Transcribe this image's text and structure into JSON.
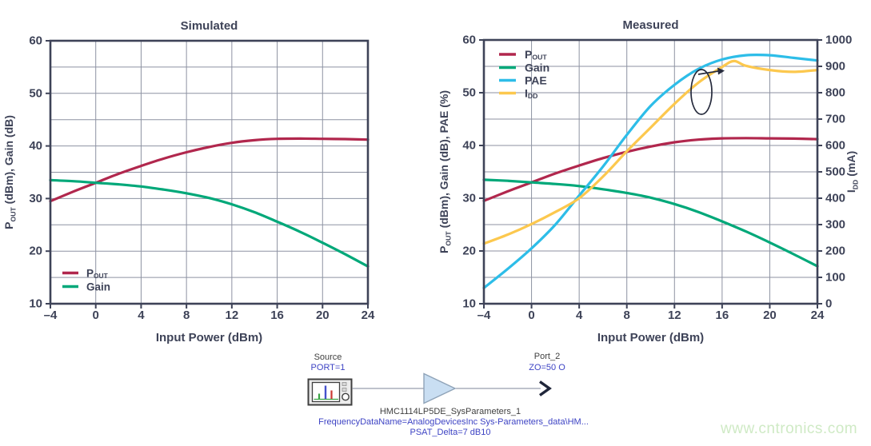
{
  "watermark": "www.cntronics.com",
  "colors": {
    "pout": "#b1274d",
    "gain": "#00a879",
    "pae": "#2dbde8",
    "idd": "#fcc84e",
    "axis": "#3e4358",
    "grid": "#8d92a2",
    "amp_fill": "#c9def2",
    "amp_stroke": "#8fa3b8",
    "wire": "#7d8699",
    "schematic_blue": "#3d43c4",
    "schematic_dark": "#3f3f3f",
    "watermark_green": "#cfeac5"
  },
  "chart_data": [
    {
      "type": "line",
      "title": "Simulated",
      "xlabel": "Input Power (dBm)",
      "ylabel": "P_OUT (dBm), Gain (dB)",
      "ylabel_parts": [
        {
          "t": "P"
        },
        {
          "t": "OUT",
          "sub": true
        },
        {
          "t": " (dBm), Gain (dB)"
        }
      ],
      "xlim": [
        -4,
        24
      ],
      "ylim": [
        10,
        60
      ],
      "xticks": [
        -4,
        0,
        4,
        8,
        12,
        16,
        20,
        24
      ],
      "xtick_labels": [
        "–4",
        "0",
        "4",
        "8",
        "12",
        "16",
        "20",
        "24"
      ],
      "yticks": [
        10,
        20,
        30,
        40,
        50,
        60
      ],
      "xgrid_step": 4,
      "ygrid_step": 5,
      "grid": true,
      "legend_position": "bottom-left",
      "series": [
        {
          "name": "POUT",
          "label_parts": [
            {
              "t": "P"
            },
            {
              "t": "OUT",
              "sub": true
            }
          ],
          "color": "#b1274d",
          "x": [
            -4,
            -2,
            0,
            2,
            4,
            6,
            8,
            10,
            12,
            14,
            16,
            18,
            20,
            22,
            24
          ],
          "y": [
            29.5,
            31.3,
            33,
            34.7,
            36.2,
            37.6,
            38.8,
            39.8,
            40.6,
            41.1,
            41.35,
            41.4,
            41.35,
            41.3,
            41.2
          ]
        },
        {
          "name": "Gain",
          "label_parts": [
            {
              "t": "Gain"
            }
          ],
          "color": "#00a879",
          "x": [
            -4,
            -2,
            0,
            2,
            4,
            6,
            8,
            10,
            12,
            14,
            16,
            18,
            20,
            22,
            24
          ],
          "y": [
            33.5,
            33.3,
            33,
            32.7,
            32.3,
            31.7,
            31,
            30.1,
            28.9,
            27.4,
            25.6,
            23.7,
            21.6,
            19.4,
            17.1
          ]
        }
      ]
    },
    {
      "type": "line",
      "title": "Measured",
      "xlabel": "Input Power (dBm)",
      "ylabel": "P_OUT (dBm), Gain (dB), PAE (%)",
      "ylabel_parts": [
        {
          "t": "P"
        },
        {
          "t": "OUT",
          "sub": true
        },
        {
          "t": " (dBm), Gain (dB), PAE (%)"
        }
      ],
      "y2label": "I_DD (mA)",
      "y2label_parts": [
        {
          "t": "I"
        },
        {
          "t": "DD",
          "sub": true
        },
        {
          "t": " (mA)"
        }
      ],
      "xlim": [
        -4,
        24
      ],
      "ylim": [
        10,
        60
      ],
      "y2lim": [
        0,
        1000
      ],
      "xticks": [
        -4,
        0,
        4,
        8,
        12,
        16,
        20,
        24
      ],
      "xtick_labels": [
        "–4",
        "0",
        "4",
        "8",
        "12",
        "16",
        "20",
        "24"
      ],
      "yticks": [
        10,
        20,
        30,
        40,
        50,
        60
      ],
      "y2ticks": [
        0,
        100,
        200,
        300,
        400,
        500,
        600,
        700,
        800,
        900,
        1000
      ],
      "xgrid_step": 4,
      "ygrid_step": 5,
      "grid": true,
      "legend_position": "top-left",
      "annotation": {
        "type": "ellipse-arrow",
        "meaning": "IDD curve reads right axis"
      },
      "series": [
        {
          "name": "POUT",
          "label_parts": [
            {
              "t": "P"
            },
            {
              "t": "OUT",
              "sub": true
            }
          ],
          "color": "#b1274d",
          "x": [
            -4,
            -2,
            0,
            2,
            4,
            6,
            8,
            10,
            12,
            14,
            16,
            18,
            20,
            22,
            24
          ],
          "y": [
            29.5,
            31.3,
            33,
            34.7,
            36.2,
            37.6,
            38.8,
            39.8,
            40.6,
            41.1,
            41.35,
            41.4,
            41.35,
            41.3,
            41.2
          ]
        },
        {
          "name": "Gain",
          "label_parts": [
            {
              "t": "Gain"
            }
          ],
          "color": "#00a879",
          "x": [
            -4,
            -2,
            0,
            2,
            4,
            6,
            8,
            10,
            12,
            14,
            16,
            18,
            20,
            22,
            24
          ],
          "y": [
            33.5,
            33.3,
            33,
            32.7,
            32.3,
            31.7,
            31,
            30.1,
            28.9,
            27.4,
            25.6,
            23.7,
            21.6,
            19.4,
            17.1
          ]
        },
        {
          "name": "PAE",
          "label_parts": [
            {
              "t": "PAE"
            }
          ],
          "color": "#2dbde8",
          "x": [
            -4,
            -2,
            0,
            2,
            4,
            6,
            8,
            10,
            12,
            14,
            16,
            18,
            20,
            22,
            24
          ],
          "y": [
            13,
            16.6,
            20.5,
            25,
            30.5,
            36,
            42,
            47.5,
            51.5,
            54.5,
            56.3,
            57.1,
            57.1,
            56.6,
            56.1
          ]
        },
        {
          "name": "IDD",
          "label_parts": [
            {
              "t": "I"
            },
            {
              "t": "DD",
              "sub": true
            }
          ],
          "color": "#fcc84e",
          "axis": "y2",
          "x": [
            -4,
            -2,
            0,
            2,
            4,
            6,
            8,
            10,
            12,
            14,
            16,
            17,
            18,
            20,
            22,
            24
          ],
          "y": [
            228,
            262,
            302,
            348,
            400,
            482,
            578,
            668,
            758,
            838,
            898,
            920,
            902,
            886,
            879,
            886
          ]
        }
      ]
    }
  ],
  "schematic": {
    "source_label": "Source",
    "source_port": "PORT=1",
    "port2_label": "Port_2",
    "port2_impedance": "ZO=50 O",
    "component_name": "HMC1114LP5DE_SysParameters_1",
    "component_frequency": "FrequencyDataName=AnalogDevicesInc Sys-Parameters_data\\HM...",
    "component_psat": "PSAT_Delta=7 dB10"
  }
}
